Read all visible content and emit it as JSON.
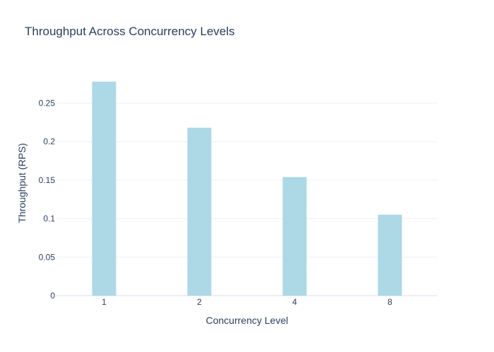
{
  "chart_data": {
    "type": "bar",
    "title": "Throughput Across Concurrency Levels",
    "xlabel": "Concurrency Level",
    "ylabel": "Throughput (RPS)",
    "categories": [
      "1",
      "2",
      "4",
      "8"
    ],
    "values": [
      0.278,
      0.218,
      0.154,
      0.105
    ],
    "ylim": [
      0,
      0.2925
    ],
    "yticks": [
      0,
      0.05,
      0.1,
      0.15,
      0.2,
      0.25
    ],
    "ytick_labels": [
      "0",
      "0.05",
      "0.1",
      "0.15",
      "0.2",
      "0.25"
    ],
    "grid": true,
    "legend": "none",
    "bar_color": "#add8e6",
    "text_color": "#2a3f5f",
    "grid_color": "#ebf0f8"
  }
}
